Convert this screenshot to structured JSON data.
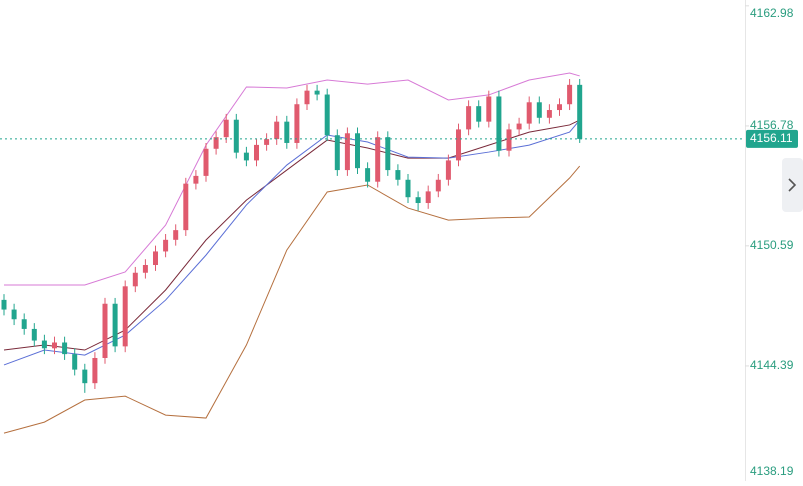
{
  "chart_data": {
    "type": "candlestick",
    "open": [
      4147.8,
      4147.3,
      4146.8,
      4146.3,
      4145.7,
      4145.3,
      4145.6,
      4145.0,
      4144.2,
      4143.5,
      4144.8,
      4147.6,
      4145.4,
      4148.5,
      4149.2,
      4149.6,
      4150.3,
      4150.9,
      4151.4,
      4153.8,
      4154.2,
      4155.6,
      4156.2,
      4157.1,
      4155.4,
      4155.0,
      4155.8,
      4156.1,
      4157.0,
      4155.9,
      4157.9,
      4158.6,
      4158.4,
      4156.3,
      4154.5,
      4156.4,
      4154.6,
      4153.9,
      4156.2,
      4154.5,
      4154.0,
      4153.1,
      4152.8,
      4153.4,
      4154.0,
      4155.0,
      4156.6,
      4157.8,
      4157.0,
      4158.3,
      4155.5,
      4156.6,
      4156.9,
      4158.0,
      4157.2,
      4157.6,
      4157.9,
      4158.9
    ],
    "high": [
      4148.1,
      4147.6,
      4147.1,
      4146.6,
      4146.0,
      4145.9,
      4145.9,
      4145.3,
      4144.5,
      4145.1,
      4147.9,
      4147.9,
      4148.8,
      4149.5,
      4149.9,
      4150.6,
      4151.2,
      4151.7,
      4154.1,
      4154.5,
      4155.9,
      4156.5,
      4157.4,
      4157.4,
      4155.7,
      4156.1,
      4156.4,
      4157.3,
      4157.3,
      4158.2,
      4158.9,
      4158.9,
      4158.7,
      4156.6,
      4156.7,
      4156.7,
      4154.9,
      4156.5,
      4156.5,
      4154.8,
      4154.3,
      4153.4,
      4153.7,
      4154.3,
      4155.3,
      4156.9,
      4158.1,
      4158.1,
      4158.6,
      4158.6,
      4156.9,
      4157.2,
      4158.3,
      4158.3,
      4157.9,
      4158.2,
      4159.2,
      4159.2
    ],
    "low": [
      4147.0,
      4146.5,
      4146.0,
      4145.4,
      4145.0,
      4145.0,
      4144.7,
      4143.9,
      4143.0,
      4143.2,
      4144.5,
      4145.1,
      4145.1,
      4148.2,
      4148.9,
      4149.3,
      4150.0,
      4150.6,
      4151.1,
      4153.5,
      4153.9,
      4155.3,
      4155.9,
      4155.1,
      4154.7,
      4154.7,
      4155.5,
      4155.8,
      4155.6,
      4155.6,
      4157.6,
      4158.1,
      4156.0,
      4154.2,
      4154.2,
      4154.3,
      4153.6,
      4153.6,
      4154.2,
      4153.7,
      4152.8,
      4152.4,
      4152.5,
      4153.1,
      4153.7,
      4154.7,
      4156.3,
      4156.7,
      4156.7,
      4155.2,
      4155.2,
      4156.3,
      4156.6,
      4156.9,
      4156.9,
      4157.3,
      4157.6,
      4155.9
    ],
    "close": [
      4147.3,
      4146.8,
      4146.3,
      4145.7,
      4145.3,
      4145.6,
      4145.0,
      4144.2,
      4143.5,
      4144.8,
      4147.6,
      4145.4,
      4148.5,
      4149.2,
      4149.6,
      4150.3,
      4150.9,
      4151.4,
      4153.8,
      4154.2,
      4155.6,
      4156.2,
      4157.1,
      4155.4,
      4155.0,
      4155.8,
      4156.1,
      4157.0,
      4155.9,
      4157.9,
      4158.6,
      4158.4,
      4156.3,
      4154.5,
      4156.4,
      4154.6,
      4153.9,
      4156.2,
      4154.5,
      4154.0,
      4153.1,
      4152.8,
      4153.4,
      4154.0,
      4155.0,
      4156.6,
      4157.8,
      4157.0,
      4158.3,
      4155.5,
      4156.6,
      4156.9,
      4158.0,
      4157.2,
      4157.6,
      4157.9,
      4158.9,
      4156.11
    ],
    "up_color": "#e05a6e",
    "down_color": "#21a58e",
    "lines": [
      {
        "color": "#d77ad6",
        "x": [
          0,
          4,
          8,
          12,
          16,
          20,
          24,
          28,
          32,
          36,
          40,
          44,
          48,
          52,
          56,
          57
        ],
        "values": [
          4148.57,
          4148.57,
          4148.57,
          4149.24,
          4151.66,
          4155.79,
          4158.79,
          4158.74,
          4159.15,
          4158.94,
          4159.15,
          4158.12,
          4158.38,
          4159.15,
          4159.51,
          4159.36
        ]
      },
      {
        "color": "#7a2a3a",
        "x": [
          0,
          4,
          8,
          12,
          16,
          20,
          24,
          28,
          32,
          36,
          40,
          44,
          48,
          52,
          56,
          57
        ],
        "values": [
          4145.21,
          4145.47,
          4145.21,
          4146.24,
          4148.31,
          4150.89,
          4152.95,
          4154.5,
          4156.05,
          4155.64,
          4155.12,
          4155.12,
          4155.79,
          4156.46,
          4156.83,
          4157.08
        ]
      },
      {
        "color": "#5b6fd6",
        "x": [
          0,
          4,
          8,
          12,
          16,
          20,
          24,
          28,
          32,
          36,
          40,
          44,
          48,
          52,
          56,
          57
        ],
        "values": [
          4144.44,
          4145.21,
          4144.95,
          4145.98,
          4147.79,
          4150.11,
          4152.7,
          4154.76,
          4156.31,
          4155.95,
          4155.17,
          4155.12,
          4155.43,
          4155.79,
          4156.46,
          4157.08
        ]
      },
      {
        "color": "#b5703f",
        "x": [
          0,
          4,
          8,
          12,
          16,
          20,
          24,
          28,
          32,
          36,
          40,
          44,
          48,
          52,
          56,
          57
        ],
        "values": [
          4140.92,
          4141.49,
          4142.63,
          4142.83,
          4141.85,
          4141.7,
          4145.47,
          4150.37,
          4153.37,
          4153.73,
          4152.54,
          4151.92,
          4152.02,
          4152.08,
          4154.09,
          4154.71
        ]
      }
    ],
    "ylim": [
      4138.45,
      4163.28
    ],
    "yticks": [
      4138.19,
      4144.39,
      4150.59,
      4156.78,
      4162.98
    ],
    "last_price": 4156.11
  }
}
